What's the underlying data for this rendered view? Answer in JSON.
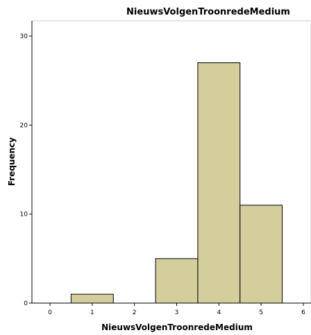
{
  "chart_data": {
    "type": "bar",
    "title": "NieuwsVolgenTroonredeMedium",
    "xlabel": "NieuwsVolgenTroonredeMedium",
    "ylabel": "Frequency",
    "bins": [
      {
        "center": 1,
        "value": 1
      },
      {
        "center": 2,
        "value": 0
      },
      {
        "center": 3,
        "value": 5
      },
      {
        "center": 4,
        "value": 27
      },
      {
        "center": 5,
        "value": 11
      }
    ],
    "bin_width": 1,
    "xlim": [
      -0.4,
      6
    ],
    "ylim": [
      0,
      31
    ],
    "x_ticks": [
      "0",
      "1",
      "2",
      "3",
      "4",
      "5",
      "6"
    ],
    "y_ticks": [
      "0",
      "10",
      "20",
      "30"
    ],
    "grid": false,
    "bar_color": "#d3ce9b",
    "bar_edge_color": "#000000"
  }
}
